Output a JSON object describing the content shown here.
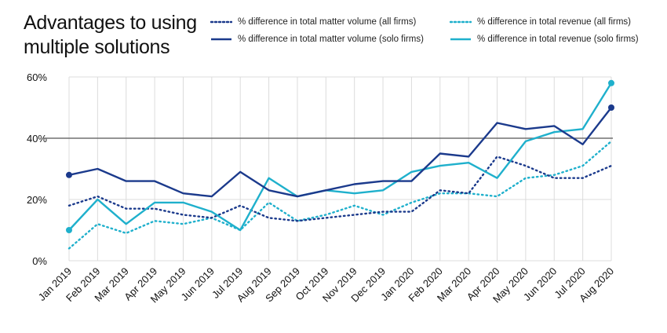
{
  "title_lines": [
    "Advantages to using",
    "multiple solutions"
  ],
  "chart_data": {
    "type": "line",
    "title": "Advantages to using multiple solutions",
    "categories": [
      "Jan 2019",
      "Feb 2019",
      "Mar 2019",
      "Apr 2019",
      "May 2019",
      "Jun 2019",
      "Jul 2019",
      "Aug 2019",
      "Sep 2019",
      "Oct 2019",
      "Nov 2019",
      "Dec 2019",
      "Jan 2020",
      "Feb 2020",
      "Mar 2020",
      "Apr 2020",
      "May 2020",
      "Jun 2020",
      "Jul 2020",
      "Aug 2020"
    ],
    "y_ticks": [
      "0%",
      "20%",
      "40%",
      "60%"
    ],
    "ylim": [
      0,
      60
    ],
    "reference_line": 40,
    "series": [
      {
        "name": "% difference in total matter volume (all firms)",
        "color": "#1b3a8c",
        "style": "dotted",
        "values": [
          18,
          21,
          17,
          17,
          15,
          14,
          18,
          14,
          13,
          14,
          15,
          16,
          16,
          23,
          22,
          34,
          31,
          27,
          27,
          31
        ]
      },
      {
        "name": "% difference in total matter volume (solo firms)",
        "color": "#1b3a8c",
        "style": "solid",
        "values": [
          28,
          30,
          26,
          26,
          22,
          21,
          29,
          23,
          21,
          23,
          25,
          26,
          26,
          35,
          34,
          45,
          43,
          44,
          38,
          50
        ]
      },
      {
        "name": "% difference in total revenue (all firms)",
        "color": "#1fb0cc",
        "style": "dotted",
        "values": [
          4,
          12,
          9,
          13,
          12,
          14,
          10,
          19,
          13,
          15,
          18,
          15,
          19,
          22,
          22,
          21,
          27,
          28,
          31,
          39
        ]
      },
      {
        "name": "% difference in total revenue (solo firms)",
        "color": "#1fb0cc",
        "style": "solid",
        "values": [
          10,
          20,
          12,
          19,
          19,
          16,
          10,
          27,
          21,
          23,
          22,
          23,
          29,
          31,
          32,
          27,
          39,
          42,
          43,
          58
        ]
      }
    ]
  }
}
